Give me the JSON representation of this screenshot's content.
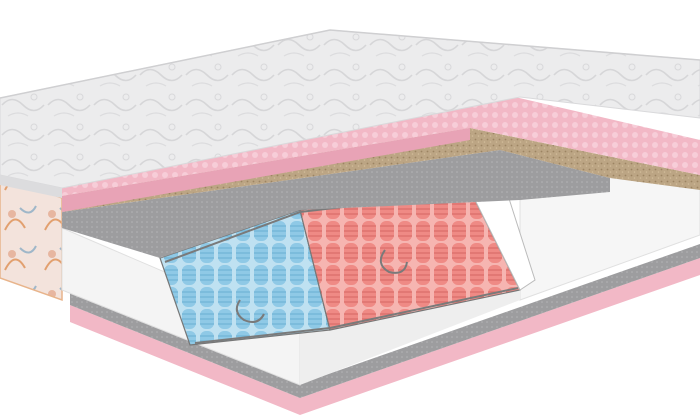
{
  "scene": {
    "subject": "mattress-cutaway",
    "colors": {
      "background": "#ffffff",
      "quilted_cover": "#e9e9ea",
      "cover_pattern": "#cfcfd1",
      "pink_foam": "#f2b8c6",
      "pink_foam_shadow": "#e49ab0",
      "coconut_coir": "#b8a07e",
      "felt": "#9a9a9c",
      "white_foam_frame": "#f4f4f4",
      "blue_springs": "#8fc9e6",
      "red_springs": "#ef8a85",
      "wire": "#7a7a7a",
      "floral_side_panel": "#f0d9cf"
    }
  }
}
